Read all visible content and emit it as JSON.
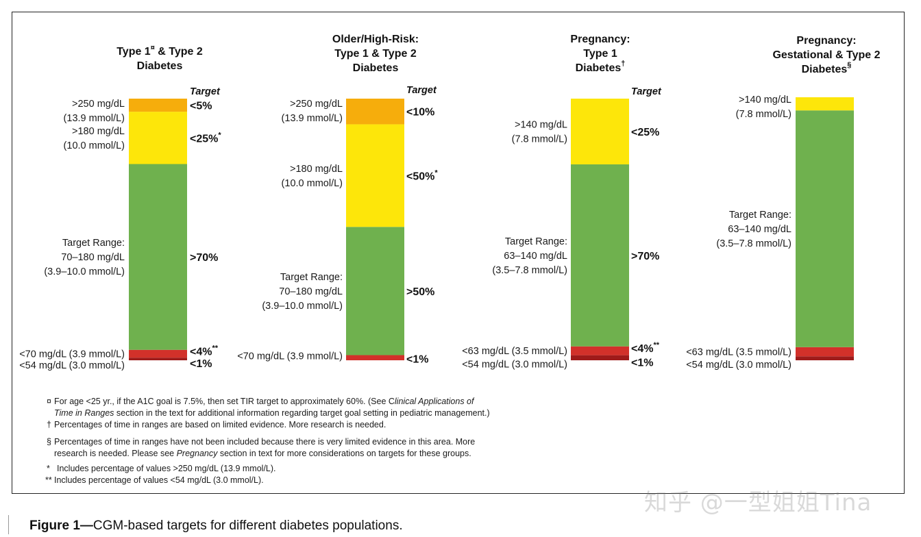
{
  "chart_data": {
    "type": "stacked-bar",
    "target_heading": "Target",
    "columns": [
      {
        "id": "t1t2",
        "title_lines": [
          "Type 1",
          "& Type 2",
          "Diabetes"
        ],
        "title_mark": "¤",
        "segments": [
          {
            "name": "very-low",
            "pct": 1,
            "color": "#9e1b1a"
          },
          {
            "name": "low",
            "pct": 3,
            "color": "#d2312a"
          },
          {
            "name": "in-range",
            "pct": 71,
            "color": "#6fb14e"
          },
          {
            "name": "high",
            "pct": 20,
            "color": "#fde60a"
          },
          {
            "name": "very-high",
            "pct": 5,
            "color": "#f6ad0c"
          }
        ],
        "range_labels": [
          {
            "seg": "very-high",
            "lines": [
              ">250 mg/dL",
              "(13.9 mmol/L)"
            ]
          },
          {
            "seg": "high",
            "lines": [
              ">180 mg/dL",
              "(10.0 mmol/L)"
            ]
          },
          {
            "seg": "in-range",
            "lines": [
              "Target Range:",
              "70–180 mg/dL",
              "(3.9–10.0 mmol/L)"
            ]
          },
          {
            "seg": "low",
            "lines": [
              "<70 mg/dL (3.9 mmol/L)"
            ]
          },
          {
            "seg": "very-low",
            "lines": [
              "<54 mg/dL (3.0 mmol/L)"
            ]
          }
        ],
        "targets": [
          {
            "seg": "very-high",
            "text": "<5%",
            "mark": ""
          },
          {
            "seg": "high",
            "text": "<25%",
            "mark": "*"
          },
          {
            "seg": "in-range",
            "text": ">70%",
            "mark": ""
          },
          {
            "seg": "low",
            "text": "<4%",
            "mark": "**"
          },
          {
            "seg": "very-low",
            "text": "<1%",
            "mark": ""
          }
        ]
      },
      {
        "id": "older",
        "title_lines": [
          "Older/High-Risk:",
          "Type 1 & Type 2",
          "Diabetes"
        ],
        "title_mark": "",
        "segments": [
          {
            "name": "low",
            "pct": 2,
            "color": "#d2312a"
          },
          {
            "name": "in-range",
            "pct": 50,
            "color": "#6fb14e"
          },
          {
            "name": "high",
            "pct": 40,
            "color": "#fde60a"
          },
          {
            "name": "very-high",
            "pct": 10,
            "color": "#f6ad0c"
          }
        ],
        "range_labels": [
          {
            "seg": "very-high",
            "lines": [
              ">250 mg/dL",
              "(13.9 mmol/L)"
            ]
          },
          {
            "seg": "high",
            "lines": [
              ">180 mg/dL",
              "(10.0 mmol/L)"
            ]
          },
          {
            "seg": "in-range",
            "lines": [
              "Target Range:",
              "70–180 mg/dL",
              "(3.9–10.0 mmol/L)"
            ]
          },
          {
            "seg": "low",
            "lines": [
              "<70 mg/dL (3.9 mmol/L)"
            ]
          }
        ],
        "targets": [
          {
            "seg": "very-high",
            "text": "<10%",
            "mark": ""
          },
          {
            "seg": "high",
            "text": "<50%",
            "mark": "*"
          },
          {
            "seg": "in-range",
            "text": ">50%",
            "mark": ""
          },
          {
            "seg": "low",
            "text": "<1%",
            "mark": ""
          }
        ]
      },
      {
        "id": "preg1",
        "title_lines": [
          "Pregnancy:",
          "Type 1",
          "Diabetes"
        ],
        "title_mark": "†",
        "segments": [
          {
            "name": "very-low",
            "pct": 2,
            "color": "#9e1b1a"
          },
          {
            "name": "low",
            "pct": 3.5,
            "color": "#d2312a"
          },
          {
            "name": "in-range",
            "pct": 72,
            "color": "#6fb14e"
          },
          {
            "name": "high",
            "pct": 26,
            "color": "#fde60a"
          }
        ],
        "range_labels": [
          {
            "seg": "high",
            "lines": [
              ">140 mg/dL",
              "(7.8 mmol/L)"
            ]
          },
          {
            "seg": "in-range",
            "lines": [
              "Target Range:",
              "63–140 mg/dL",
              "(3.5–7.8 mmol/L)"
            ]
          },
          {
            "seg": "low",
            "lines": [
              "<63 mg/dL (3.5 mmol/L)"
            ]
          },
          {
            "seg": "very-low",
            "lines": [
              "<54 mg/dL (3.0 mmol/L)"
            ]
          }
        ],
        "targets": [
          {
            "seg": "high",
            "text": "<25%",
            "mark": ""
          },
          {
            "seg": "in-range",
            "text": ">70%",
            "mark": ""
          },
          {
            "seg": "low",
            "text": "<4%",
            "mark": "**"
          },
          {
            "seg": "very-low",
            "text": "<1%",
            "mark": ""
          }
        ]
      },
      {
        "id": "preg2",
        "title_lines": [
          "Pregnancy:",
          "Gestational & Type 2",
          "Diabetes"
        ],
        "title_mark": "§",
        "segments": [
          {
            "name": "very-low",
            "pct": 1.5,
            "color": "#9e1b1a"
          },
          {
            "name": "low",
            "pct": 3.5,
            "color": "#d2312a"
          },
          {
            "name": "in-range",
            "pct": 90,
            "color": "#6fb14e"
          },
          {
            "name": "high",
            "pct": 5,
            "color": "#fde60a"
          }
        ],
        "range_labels": [
          {
            "seg": "high",
            "lines": [
              ">140 mg/dL",
              "(7.8 mmol/L)"
            ]
          },
          {
            "seg": "in-range",
            "lines": [
              "Target Range:",
              "63–140 mg/dL",
              "(3.5–7.8 mmol/L)"
            ]
          },
          {
            "seg": "low",
            "lines": [
              "<63 mg/dL (3.5 mmol/L)"
            ]
          },
          {
            "seg": "very-low",
            "lines": [
              "<54 mg/dL (3.0 mmol/L)"
            ]
          }
        ],
        "targets": []
      }
    ],
    "footnotes": [
      {
        "mark": "¤",
        "lines": [
          [
            {
              "t": "For age <25 yr., if the A1C goal is 7.5%, then set TIR target to approximately 60%.  (See C",
              "i": false
            },
            {
              "t": "linical Applications of",
              "i": true
            }
          ],
          [
            {
              "t": "Time in Ranges",
              "i": true
            },
            {
              "t": " section in the text for additional information regarding target goal setting in pediatric management.)",
              "i": false
            }
          ]
        ]
      },
      {
        "mark": "†",
        "lines": [
          [
            {
              "t": "Percentages of time in ranges are based on limited evidence. More research is needed.",
              "i": false
            }
          ]
        ]
      },
      {
        "mark": "§",
        "lines": [
          [
            {
              "t": "Percentages of time in ranges have not been included because there is very limited evidence in this area.  More",
              "i": false
            }
          ],
          [
            {
              "t": "research is needed. Please see ",
              "i": false
            },
            {
              "t": "Pregnancy",
              "i": true
            },
            {
              "t": " section in text for more considerations on targets for these groups.",
              "i": false
            }
          ]
        ]
      },
      {
        "mark": "*",
        "lines": [
          [
            {
              "t": "Includes percentage of values >250 mg/dL (13.9 mmol/L).",
              "i": false
            }
          ]
        ]
      },
      {
        "mark": "**",
        "lines": [
          [
            {
              "t": "Includes percentage of values <54 mg/dL (3.0 mmol/L).",
              "i": false
            }
          ]
        ]
      }
    ]
  },
  "caption": {
    "label": "Figure 1—",
    "text": "CGM-based targets for different diabetes populations."
  },
  "watermark": "知乎 @一型姐姐Tina"
}
